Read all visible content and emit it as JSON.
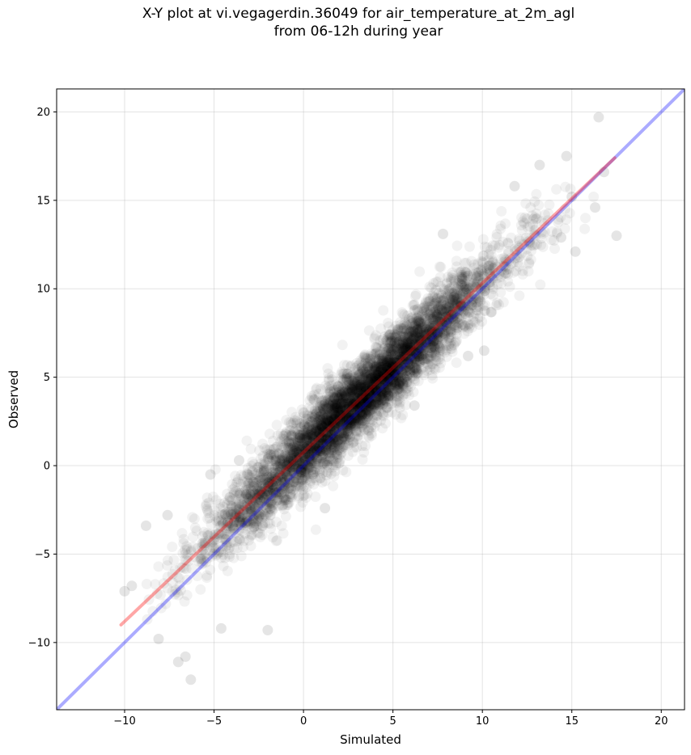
{
  "title_line1": "X-Y plot at vi.vegagerdin.36049 for air_temperature_at_2m_agl",
  "title_line2": "from 06-12h during year",
  "chart_data": {
    "type": "scatter",
    "title": "X-Y plot at vi.vegagerdin.36049 for air_temperature_at_2m_agl from 06-12h during year",
    "xlabel": "Simulated",
    "ylabel": "Observed",
    "xlim": [
      -13.8,
      21.3
    ],
    "ylim": [
      -13.8,
      21.3
    ],
    "xticks": [
      -10,
      -5,
      0,
      5,
      10,
      15,
      20
    ],
    "yticks": [
      -10,
      -5,
      0,
      5,
      10,
      15,
      20
    ],
    "tick_labels": [
      "−10",
      "−5",
      "0",
      "5",
      "10",
      "15",
      "20"
    ],
    "grid": true,
    "points_color": "#000000",
    "identity_line": {
      "x": [
        -13.8,
        21.3
      ],
      "y": [
        -13.8,
        21.3
      ],
      "color": "#0000ff"
    },
    "fit_line": {
      "x": [
        -10.2,
        17.4
      ],
      "y": [
        -9.0,
        17.4
      ],
      "color": "#ff0000"
    },
    "point_cloud": {
      "n": 5200,
      "x_range": [
        -9,
        17
      ],
      "slope": 0.956,
      "intercept": 0.75
    },
    "outlier_points": [
      {
        "x": 16.5,
        "y": 19.7
      },
      {
        "x": 17.5,
        "y": 13.0
      },
      {
        "x": 15.2,
        "y": 12.1
      },
      {
        "x": -6.3,
        "y": -12.1
      },
      {
        "x": -7.0,
        "y": -11.1
      },
      {
        "x": -8.1,
        "y": -9.8
      },
      {
        "x": -8.8,
        "y": -3.4
      },
      {
        "x": -10.0,
        "y": -7.1
      },
      {
        "x": -9.6,
        "y": -6.8
      },
      {
        "x": -2.0,
        "y": -9.3
      },
      {
        "x": -4.6,
        "y": -9.2
      },
      {
        "x": -6.6,
        "y": -10.8
      },
      {
        "x": -7.6,
        "y": -2.8
      },
      {
        "x": 13.2,
        "y": 17.0
      },
      {
        "x": 14.7,
        "y": 17.5
      },
      {
        "x": 11.8,
        "y": 15.8
      },
      {
        "x": 16.8,
        "y": 16.6
      },
      {
        "x": 14.4,
        "y": 12.9
      },
      {
        "x": 15.0,
        "y": 15.2
      },
      {
        "x": 16.3,
        "y": 14.6
      },
      {
        "x": 7.8,
        "y": 13.1
      },
      {
        "x": 9.2,
        "y": 6.2
      },
      {
        "x": 10.1,
        "y": 6.5
      },
      {
        "x": 6.2,
        "y": 3.4
      },
      {
        "x": -5.2,
        "y": -0.5
      },
      {
        "x": -3.6,
        "y": 0.3
      },
      {
        "x": 1.2,
        "y": -2.4
      }
    ]
  }
}
